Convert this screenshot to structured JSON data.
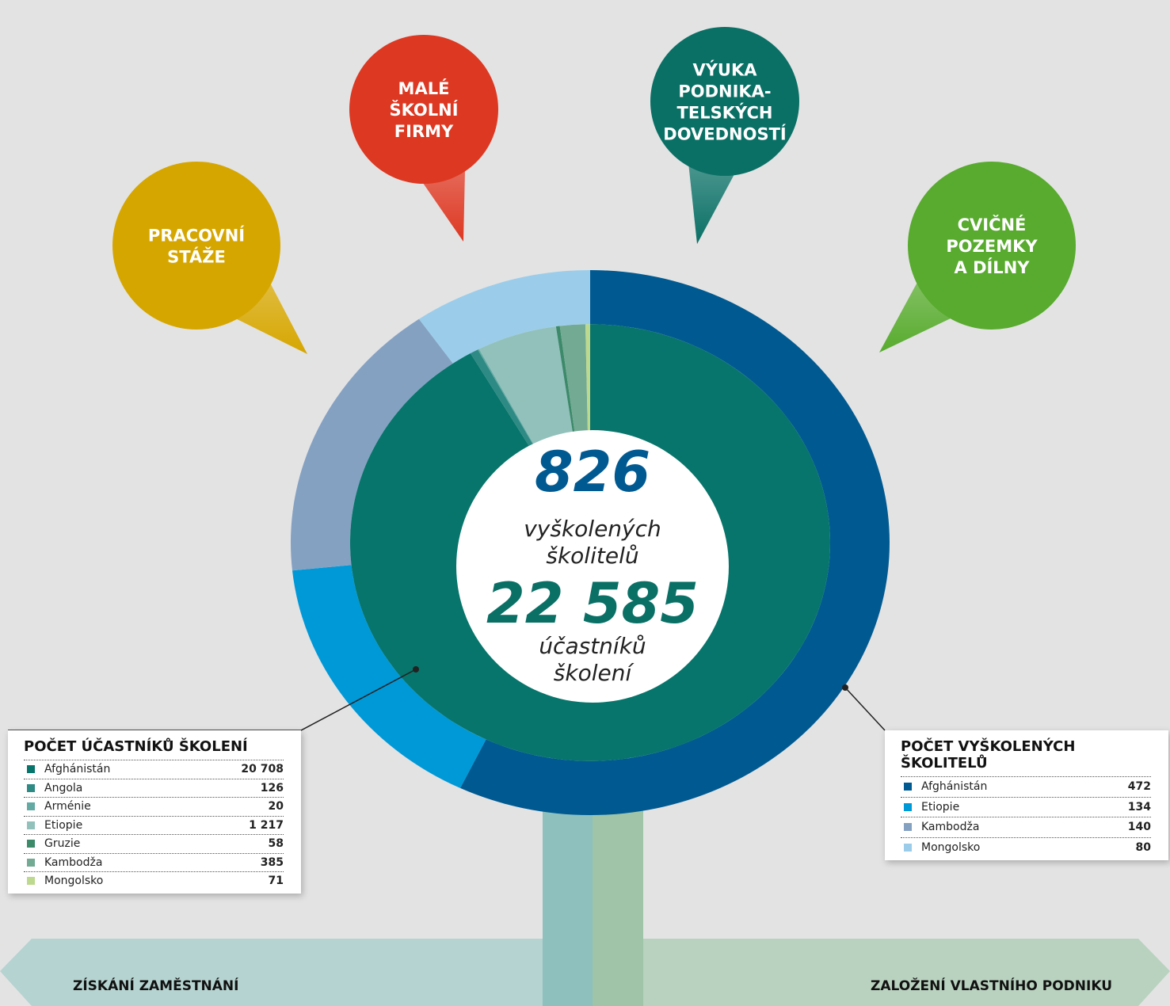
{
  "chart_data": [
    {
      "type": "pie",
      "title": "POČET VYŠKOLENÝCH ŠKOLITELŮ",
      "categories": [
        "Afghánistán",
        "Etiopie",
        "Kambodža",
        "Mongolsko"
      ],
      "values": [
        472,
        134,
        140,
        80
      ],
      "colors": [
        "#005a91",
        "#0099d8",
        "#85a1c2",
        "#9bcdea"
      ]
    },
    {
      "type": "pie",
      "title": "POČET ÚČASTNÍKŮ ŠKOLENÍ",
      "categories": [
        "Afghánistán",
        "Angola",
        "Arménie",
        "Etiopie",
        "Gruzie",
        "Kambodža",
        "Mongolsko"
      ],
      "values": [
        20708,
        126,
        20,
        1217,
        58,
        385,
        71
      ],
      "value_labels": [
        "20 708",
        "126",
        "20",
        "1 217",
        "58",
        "385",
        "71"
      ],
      "colors": [
        "#07756b",
        "#2e8a84",
        "#62aaa3",
        "#92c1bc",
        "#3d8a6b",
        "#73aa93",
        "#bdd98f"
      ]
    }
  ],
  "center": {
    "trainers_total": "826",
    "trainers_text": [
      "vyškolených",
      "školitelů"
    ],
    "participants_total": "22 585",
    "participants_text": [
      "účastníků",
      "školení"
    ]
  },
  "bubbles": [
    {
      "lines": [
        "PRACOVNÍ",
        "STÁŽE"
      ],
      "color": "#d6a600"
    },
    {
      "lines": [
        "MALÉ",
        "ŠKOLNÍ",
        "FIRMY"
      ],
      "color": "#dd3822"
    },
    {
      "lines": [
        "VÝUKA",
        "PODNIKA-",
        "TELSKÝCH",
        "DOVEDNOSTÍ"
      ],
      "color": "#0a7066"
    },
    {
      "lines": [
        "CVIČNÉ",
        "POZEMKY",
        "A DÍLNY"
      ],
      "color": "#58ab2e"
    }
  ],
  "footer": {
    "left": "ZÍSKÁNÍ ZAMĚSTNÁNÍ",
    "right": "ZALOŽENÍ VLASTNÍHO PODNIKU"
  }
}
